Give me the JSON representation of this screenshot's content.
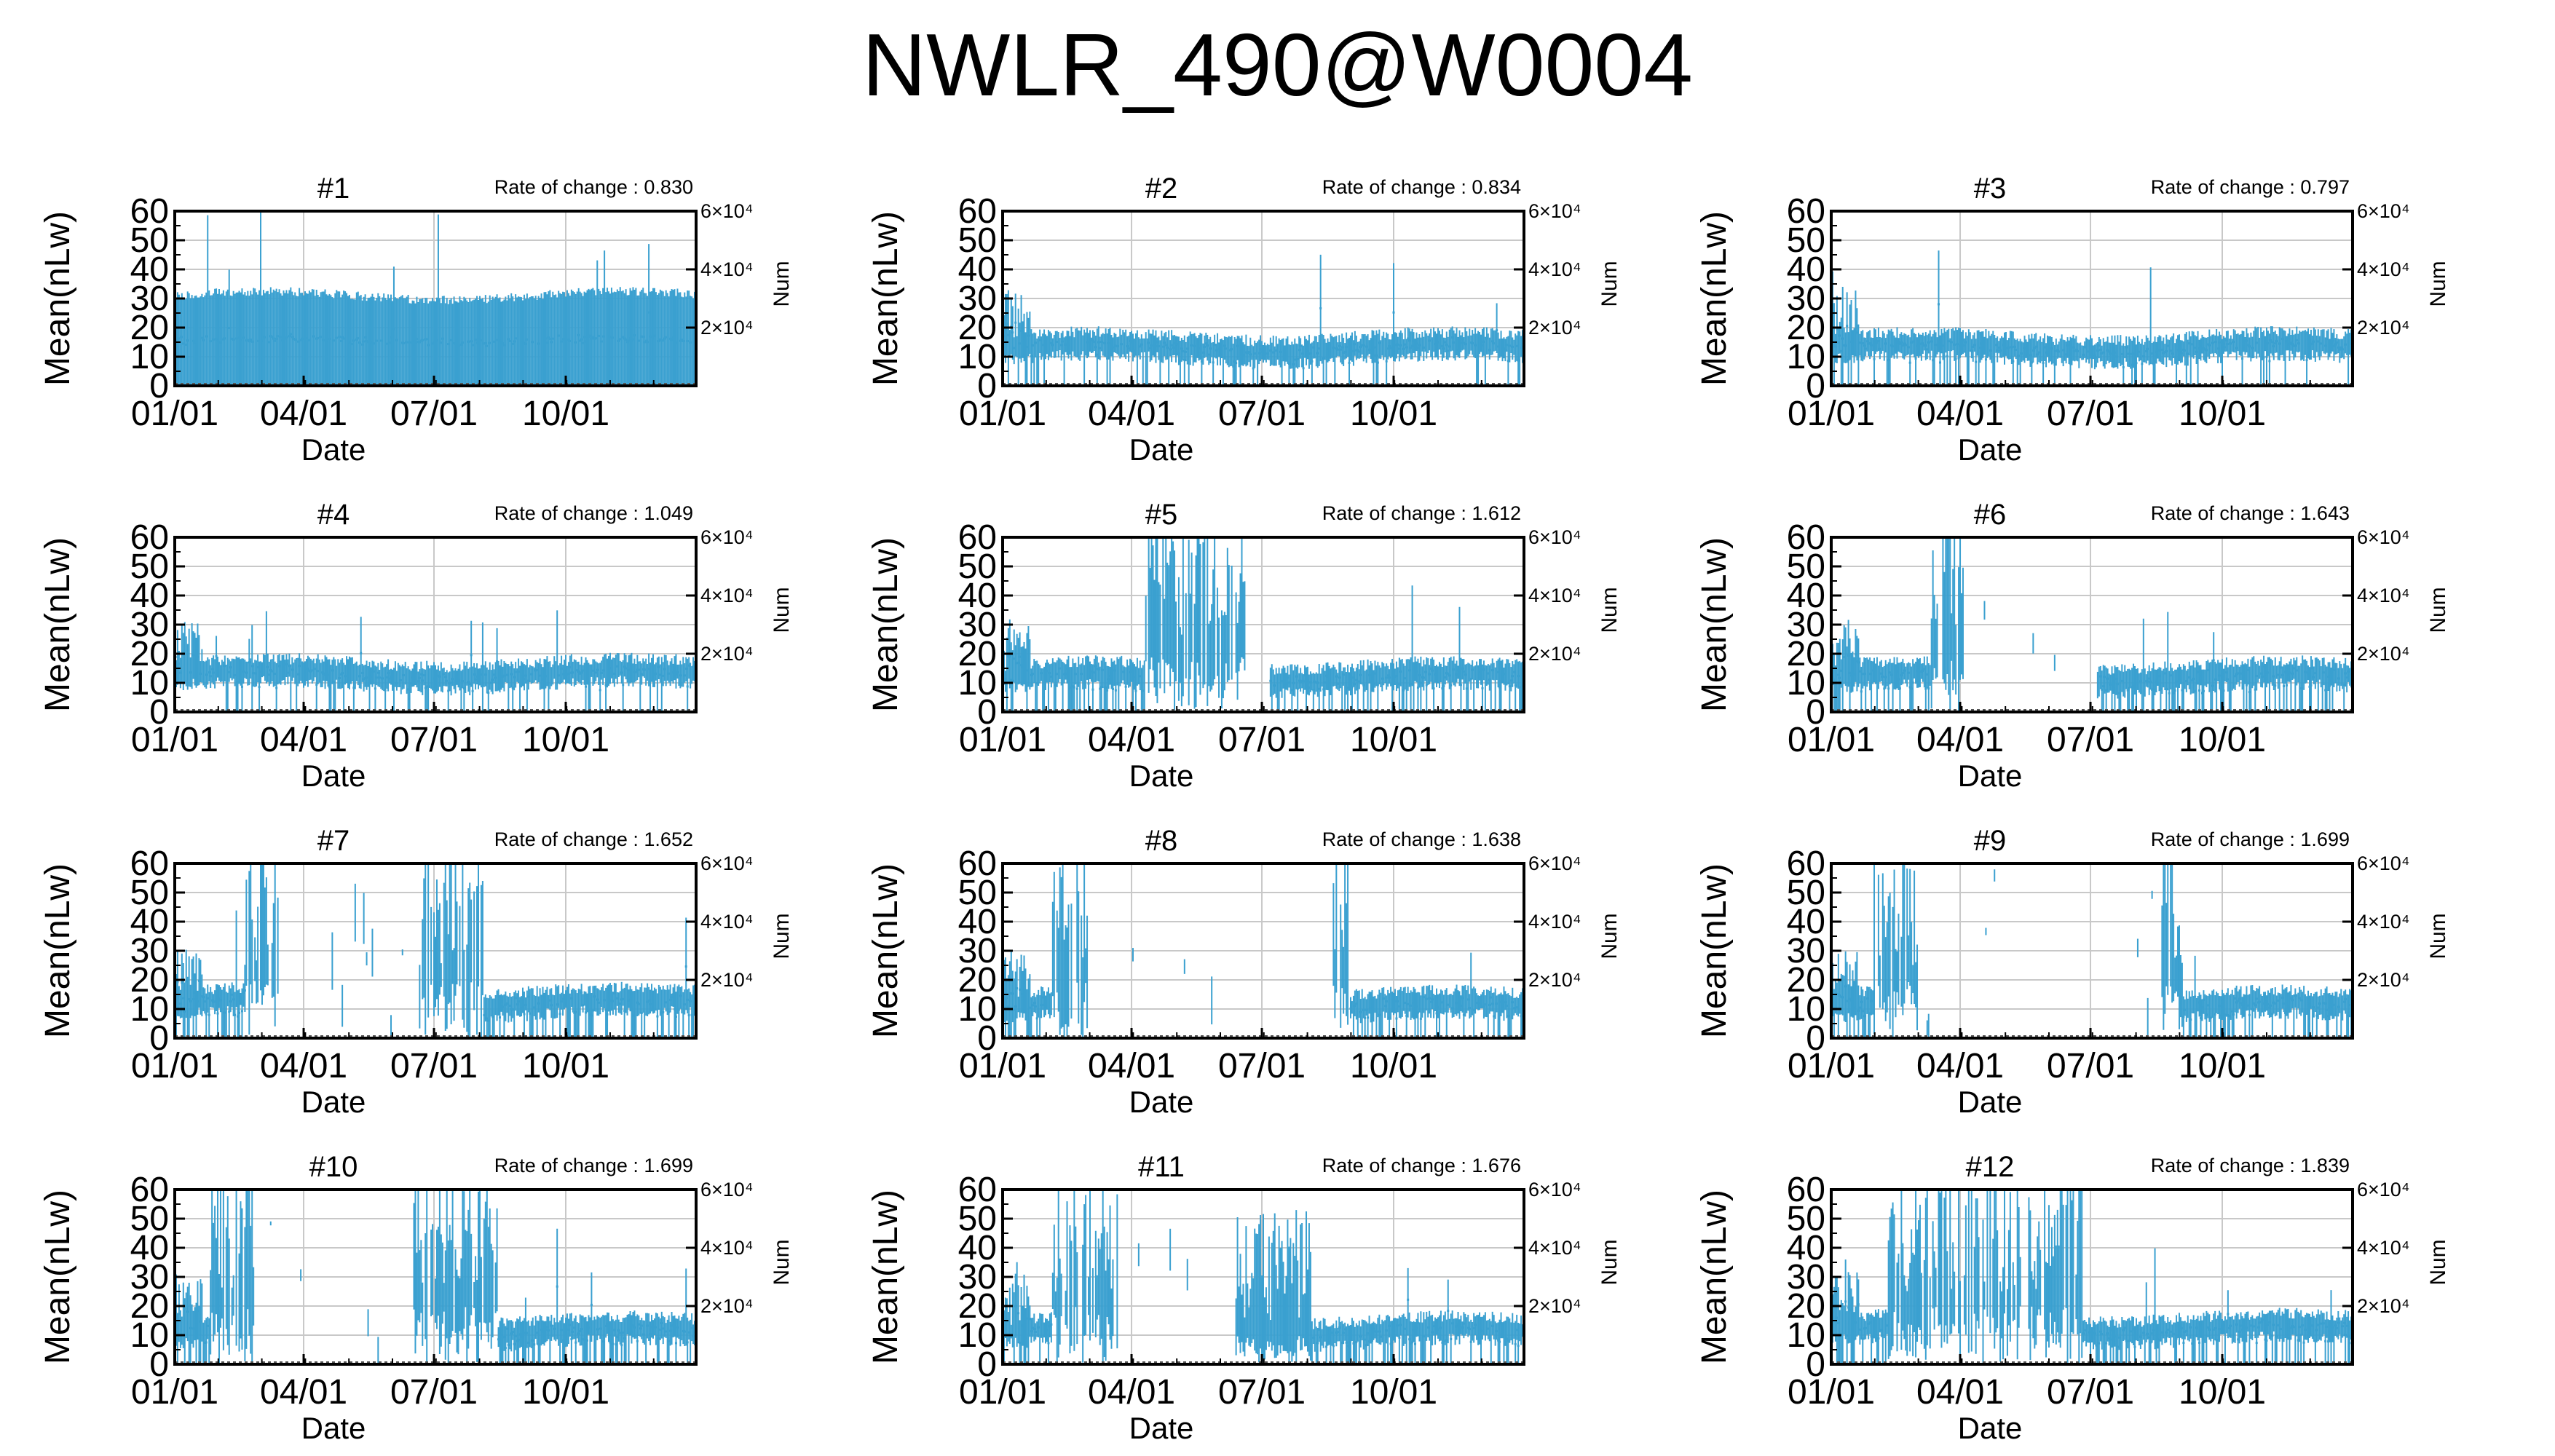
{
  "title": "NWLR_490@W0004",
  "colors": {
    "series": "#3aa0d0",
    "grid": "#c8c8c8",
    "axis": "#000000"
  },
  "chart_data": [
    {
      "type": "line",
      "title": "#1",
      "rate_label": "Rate of change : 0.830",
      "xlabel": "Date",
      "ylabel": "Mean(nLw)",
      "y2label": "Num",
      "xticks": [
        "01/01",
        "04/01",
        "07/01",
        "10/01"
      ],
      "yticks": [
        0,
        10,
        20,
        30,
        40,
        50,
        60
      ],
      "y2ticks": [
        "2×10⁴",
        "4×10⁴",
        "6×10⁴"
      ],
      "ylim": [
        0,
        60
      ],
      "grid": true,
      "base": 28,
      "noise": 3,
      "spike": 1.0,
      "segments": []
    },
    {
      "type": "line",
      "title": "#2",
      "rate_label": "Rate of change : 0.834",
      "xlabel": "Date",
      "ylabel": "Mean(nLw)",
      "y2label": "Num",
      "xticks": [
        "01/01",
        "04/01",
        "07/01",
        "10/01"
      ],
      "yticks": [
        0,
        10,
        20,
        30,
        40,
        50,
        60
      ],
      "y2ticks": [
        "2×10⁴",
        "4×10⁴",
        "6×10⁴"
      ],
      "ylim": [
        0,
        60
      ],
      "grid": true,
      "base": 13,
      "noise": 4,
      "spike": 0.15,
      "segments": []
    },
    {
      "type": "line",
      "title": "#3",
      "rate_label": "Rate of change : 0.797",
      "xlabel": "Date",
      "ylabel": "Mean(nLw)",
      "y2label": "Num",
      "xticks": [
        "01/01",
        "04/01",
        "07/01",
        "10/01"
      ],
      "yticks": [
        0,
        10,
        20,
        30,
        40,
        50,
        60
      ],
      "y2ticks": [
        "2×10⁴",
        "4×10⁴",
        "6×10⁴"
      ],
      "ylim": [
        0,
        60
      ],
      "grid": true,
      "base": 13,
      "noise": 4,
      "spike": 0.15,
      "segments": []
    },
    {
      "type": "line",
      "title": "#4",
      "rate_label": "Rate of change : 1.049",
      "xlabel": "Date",
      "ylabel": "Mean(nLw)",
      "y2label": "Num",
      "xticks": [
        "01/01",
        "04/01",
        "07/01",
        "10/01"
      ],
      "yticks": [
        0,
        10,
        20,
        30,
        40,
        50,
        60
      ],
      "y2ticks": [
        "2×10⁴",
        "4×10⁴",
        "6×10⁴"
      ],
      "ylim": [
        0,
        60
      ],
      "grid": true,
      "base": 13,
      "noise": 4,
      "spike": 0.15,
      "segments": []
    },
    {
      "type": "line",
      "title": "#5",
      "rate_label": "Rate of change : 1.612",
      "xlabel": "Date",
      "ylabel": "Mean(nLw)",
      "y2label": "Num",
      "xticks": [
        "01/01",
        "04/01",
        "07/01",
        "10/01"
      ],
      "yticks": [
        0,
        10,
        20,
        30,
        40,
        50,
        60
      ],
      "y2ticks": [
        "2×10⁴",
        "4×10⁴",
        "6×10⁴"
      ],
      "ylim": [
        0,
        60
      ],
      "grid": true,
      "base": 12,
      "noise": 4,
      "spike": 0.3,
      "segments": [
        [
          100,
          170,
          "high"
        ],
        [
          171,
          186,
          "gap"
        ]
      ]
    },
    {
      "type": "line",
      "title": "#6",
      "rate_label": "Rate of change : 1.643",
      "xlabel": "Date",
      "ylabel": "Mean(nLw)",
      "y2label": "Num",
      "xticks": [
        "01/01",
        "04/01",
        "07/01",
        "10/01"
      ],
      "yticks": [
        0,
        10,
        20,
        30,
        40,
        50,
        60
      ],
      "y2ticks": [
        "2×10⁴",
        "4×10⁴",
        "6×10⁴"
      ],
      "ylim": [
        0,
        60
      ],
      "grid": true,
      "base": 12,
      "noise": 4,
      "spike": 0.3,
      "segments": [
        [
          70,
          92,
          "high"
        ],
        [
          93,
          185,
          "gap"
        ]
      ]
    },
    {
      "type": "line",
      "title": "#7",
      "rate_label": "Rate of change : 1.652",
      "xlabel": "Date",
      "ylabel": "Mean(nLw)",
      "y2label": "Num",
      "xticks": [
        "01/01",
        "04/01",
        "07/01",
        "10/01"
      ],
      "yticks": [
        0,
        10,
        20,
        30,
        40,
        50,
        60
      ],
      "y2ticks": [
        "2×10⁴",
        "4×10⁴",
        "6×10⁴"
      ],
      "ylim": [
        0,
        60
      ],
      "grid": true,
      "base": 12,
      "noise": 4,
      "spike": 0.3,
      "segments": [
        [
          50,
          72,
          "high"
        ],
        [
          73,
          170,
          "gap"
        ],
        [
          171,
          215,
          "high"
        ]
      ]
    },
    {
      "type": "line",
      "title": "#8",
      "rate_label": "Rate of change : 1.638",
      "xlabel": "Date",
      "ylabel": "Mean(nLw)",
      "y2label": "Num",
      "xticks": [
        "01/01",
        "04/01",
        "07/01",
        "10/01"
      ],
      "yticks": [
        0,
        10,
        20,
        30,
        40,
        50,
        60
      ],
      "y2ticks": [
        "2×10⁴",
        "4×10⁴",
        "6×10⁴"
      ],
      "ylim": [
        0,
        60
      ],
      "grid": true,
      "base": 11,
      "noise": 4,
      "spike": 0.3,
      "segments": [
        [
          35,
          60,
          "high"
        ],
        [
          61,
          230,
          "gap"
        ],
        [
          231,
          242,
          "high"
        ]
      ]
    },
    {
      "type": "line",
      "title": "#9",
      "rate_label": "Rate of change : 1.699",
      "xlabel": "Date",
      "ylabel": "Mean(nLw)",
      "y2label": "Num",
      "xticks": [
        "01/01",
        "04/01",
        "07/01",
        "10/01"
      ],
      "yticks": [
        0,
        10,
        20,
        30,
        40,
        50,
        60
      ],
      "y2ticks": [
        "2×10⁴",
        "4×10⁴",
        "6×10⁴"
      ],
      "ylim": [
        0,
        60
      ],
      "grid": true,
      "base": 11,
      "noise": 4,
      "spike": 0.3,
      "segments": [
        [
          30,
          60,
          "high"
        ],
        [
          61,
          230,
          "gap"
        ],
        [
          231,
          245,
          "high"
        ]
      ]
    },
    {
      "type": "line",
      "title": "#10",
      "rate_label": "Rate of change : 1.699",
      "xlabel": "Date",
      "ylabel": "Mean(nLw)",
      "y2label": "Num",
      "xticks": [
        "01/01",
        "04/01",
        "07/01",
        "10/01"
      ],
      "yticks": [
        0,
        10,
        20,
        30,
        40,
        50,
        60
      ],
      "y2ticks": [
        "2×10⁴",
        "4×10⁴",
        "6×10⁴"
      ],
      "ylim": [
        0,
        60
      ],
      "grid": true,
      "base": 11,
      "noise": 4,
      "spike": 0.3,
      "segments": [
        [
          25,
          55,
          "high"
        ],
        [
          56,
          165,
          "gap"
        ],
        [
          166,
          225,
          "high"
        ]
      ]
    },
    {
      "type": "line",
      "title": "#11",
      "rate_label": "Rate of change : 1.676",
      "xlabel": "Date",
      "ylabel": "Mean(nLw)",
      "y2label": "Num",
      "xticks": [
        "01/01",
        "04/01",
        "07/01",
        "10/01"
      ],
      "yticks": [
        0,
        10,
        20,
        30,
        40,
        50,
        60
      ],
      "y2ticks": [
        "2×10⁴",
        "4×10⁴",
        "6×10⁴"
      ],
      "ylim": [
        0,
        60
      ],
      "grid": true,
      "base": 11,
      "noise": 4,
      "spike": 0.3,
      "segments": [
        [
          35,
          80,
          "high"
        ],
        [
          81,
          162,
          "gap"
        ],
        [
          163,
          215,
          "mid"
        ]
      ]
    },
    {
      "type": "line",
      "title": "#12",
      "rate_label": "Rate of change : 1.839",
      "xlabel": "Date",
      "ylabel": "Mean(nLw)",
      "y2label": "Num",
      "xticks": [
        "01/01",
        "04/01",
        "07/01",
        "10/01"
      ],
      "yticks": [
        0,
        10,
        20,
        30,
        40,
        50,
        60
      ],
      "y2ticks": [
        "2×10⁴",
        "4×10⁴",
        "6×10⁴"
      ],
      "ylim": [
        0,
        60
      ],
      "grid": true,
      "base": 12,
      "noise": 4,
      "spike": 0.3,
      "segments": [
        [
          40,
          175,
          "high"
        ]
      ]
    }
  ]
}
